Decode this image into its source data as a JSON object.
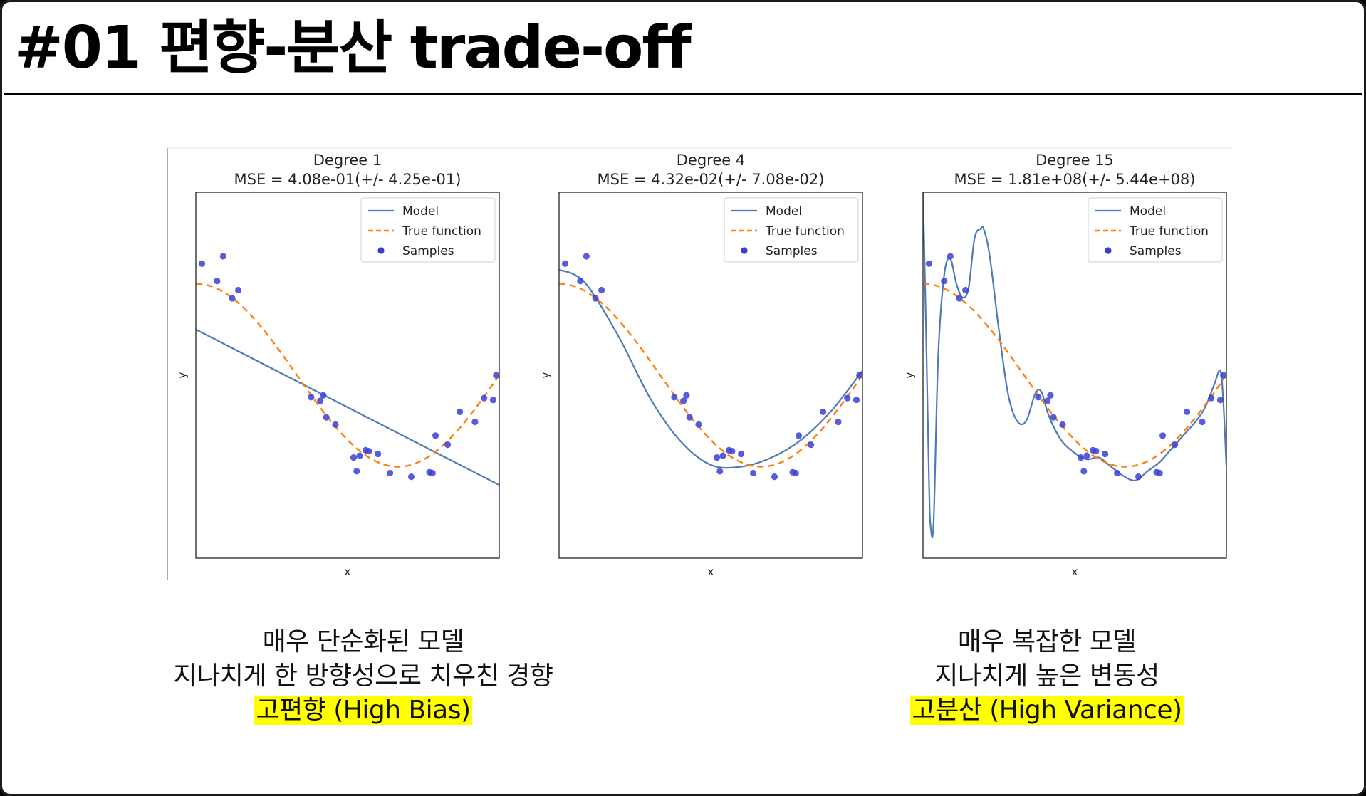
{
  "title": "#01 편향-분산 trade-off",
  "legend": {
    "model": "Model",
    "true_function": "True function",
    "samples": "Samples"
  },
  "colors": {
    "model": "#4c7bb8",
    "true_function": "#ff7f0e",
    "samples": "#3b3fd1",
    "highlight": "#ffff00"
  },
  "captions": {
    "left": {
      "line1": "매우 단순화된 모델",
      "line2": "지나치게 한 방향성으로 치우친 경향",
      "highlight": "고편향 (High Bias)"
    },
    "right": {
      "line1": "매우 복잡한 모델",
      "line2": "지나치게 높은 변동성",
      "highlight": "고분산 (High Variance)"
    }
  },
  "chart_data": [
    {
      "type": "line",
      "title": "Degree 1",
      "subtitle": "MSE = 4.08e-01(+/- 4.25e-01)",
      "xlabel": "x",
      "ylabel": "y",
      "xlim": [
        0,
        1
      ],
      "ylim": [
        -2,
        2
      ],
      "legend_position": "top-right",
      "series": [
        {
          "name": "Model",
          "style": "solid",
          "x": [
            0,
            1
          ],
          "y": [
            0.5,
            -1.2
          ]
        },
        {
          "name": "True function",
          "style": "dashed",
          "function": "cos(1.5*pi*x)"
        },
        {
          "name": "Samples",
          "style": "points",
          "x": [
            0.02,
            0.07,
            0.09,
            0.12,
            0.14,
            0.38,
            0.41,
            0.42,
            0.43,
            0.46,
            0.52,
            0.53,
            0.54,
            0.56,
            0.57,
            0.6,
            0.64,
            0.71,
            0.77,
            0.78,
            0.79,
            0.83,
            0.87,
            0.92,
            0.95,
            0.98,
            0.99
          ],
          "y": [
            1.22,
            1.03,
            1.3,
            0.84,
            0.93,
            -0.24,
            -0.28,
            -0.22,
            -0.46,
            -0.54,
            -0.9,
            -1.05,
            -0.88,
            -0.82,
            -0.83,
            -0.86,
            -1.07,
            -1.11,
            -1.06,
            -1.07,
            -0.66,
            -0.76,
            -0.4,
            -0.51,
            -0.25,
            -0.27,
            0.0
          ]
        }
      ]
    },
    {
      "type": "line",
      "title": "Degree 4",
      "subtitle": "MSE = 4.32e-02(+/- 7.08e-02)",
      "xlabel": "x",
      "ylabel": "y",
      "xlim": [
        0,
        1
      ],
      "ylim": [
        -2,
        2
      ],
      "legend_position": "top-right",
      "series": [
        {
          "name": "Model",
          "style": "solid",
          "x": [
            0,
            0.05,
            0.1,
            0.2,
            0.3,
            0.4,
            0.5,
            0.6,
            0.7,
            0.8,
            0.9,
            1.0
          ],
          "y": [
            1.15,
            1.1,
            0.95,
            0.4,
            -0.25,
            -0.72,
            -0.98,
            -1.0,
            -0.9,
            -0.7,
            -0.38,
            0.05
          ]
        },
        {
          "name": "True function",
          "style": "dashed",
          "function": "cos(1.5*pi*x)"
        },
        {
          "name": "Samples",
          "style": "points",
          "x": [
            0.02,
            0.07,
            0.09,
            0.12,
            0.14,
            0.38,
            0.41,
            0.42,
            0.43,
            0.46,
            0.52,
            0.53,
            0.54,
            0.56,
            0.57,
            0.6,
            0.64,
            0.71,
            0.77,
            0.78,
            0.79,
            0.83,
            0.87,
            0.92,
            0.95,
            0.98,
            0.99
          ],
          "y": [
            1.22,
            1.03,
            1.3,
            0.84,
            0.93,
            -0.24,
            -0.28,
            -0.22,
            -0.46,
            -0.54,
            -0.9,
            -1.05,
            -0.88,
            -0.82,
            -0.83,
            -0.86,
            -1.07,
            -1.11,
            -1.06,
            -1.07,
            -0.66,
            -0.76,
            -0.4,
            -0.51,
            -0.25,
            -0.27,
            0.0
          ]
        }
      ]
    },
    {
      "type": "line",
      "title": "Degree 15",
      "subtitle": "MSE = 1.81e+08(+/- 5.44e+08)",
      "xlabel": "x",
      "ylabel": "y",
      "xlim": [
        0,
        1
      ],
      "ylim": [
        -2,
        2
      ],
      "legend_position": "top-right",
      "series": [
        {
          "name": "Model",
          "style": "solid",
          "x": [
            0.0,
            0.01,
            0.02,
            0.025,
            0.035,
            0.05,
            0.07,
            0.09,
            0.11,
            0.13,
            0.15,
            0.17,
            0.19,
            0.2,
            0.22,
            0.25,
            0.28,
            0.31,
            0.34,
            0.37,
            0.39,
            0.41,
            0.43,
            0.46,
            0.5,
            0.54,
            0.58,
            0.62,
            0.66,
            0.7,
            0.74,
            0.78,
            0.82,
            0.86,
            0.9,
            0.93,
            0.96,
            0.98,
            0.99,
            1.0
          ],
          "y": [
            2.0,
            0.5,
            -1.2,
            -1.65,
            -1.6,
            0.2,
            1.1,
            1.27,
            1.0,
            0.85,
            0.95,
            1.5,
            1.6,
            1.6,
            1.3,
            0.5,
            -0.2,
            -0.5,
            -0.5,
            -0.2,
            -0.18,
            -0.4,
            -0.56,
            -0.73,
            -0.85,
            -0.92,
            -0.9,
            -1.0,
            -1.1,
            -1.15,
            -1.05,
            -0.95,
            -0.8,
            -0.65,
            -0.5,
            -0.35,
            -0.1,
            0.05,
            -0.3,
            -1.0
          ]
        },
        {
          "name": "True function",
          "style": "dashed",
          "function": "cos(1.5*pi*x)"
        },
        {
          "name": "Samples",
          "style": "points",
          "x": [
            0.02,
            0.07,
            0.09,
            0.12,
            0.14,
            0.38,
            0.41,
            0.42,
            0.43,
            0.46,
            0.52,
            0.53,
            0.54,
            0.56,
            0.57,
            0.6,
            0.64,
            0.71,
            0.77,
            0.78,
            0.79,
            0.83,
            0.87,
            0.92,
            0.95,
            0.98,
            0.99
          ],
          "y": [
            1.22,
            1.03,
            1.3,
            0.84,
            0.93,
            -0.24,
            -0.28,
            -0.22,
            -0.46,
            -0.54,
            -0.9,
            -1.05,
            -0.88,
            -0.82,
            -0.83,
            -0.86,
            -1.07,
            -1.11,
            -1.06,
            -1.07,
            -0.66,
            -0.76,
            -0.4,
            -0.51,
            -0.25,
            -0.27,
            0.0
          ]
        }
      ]
    }
  ]
}
